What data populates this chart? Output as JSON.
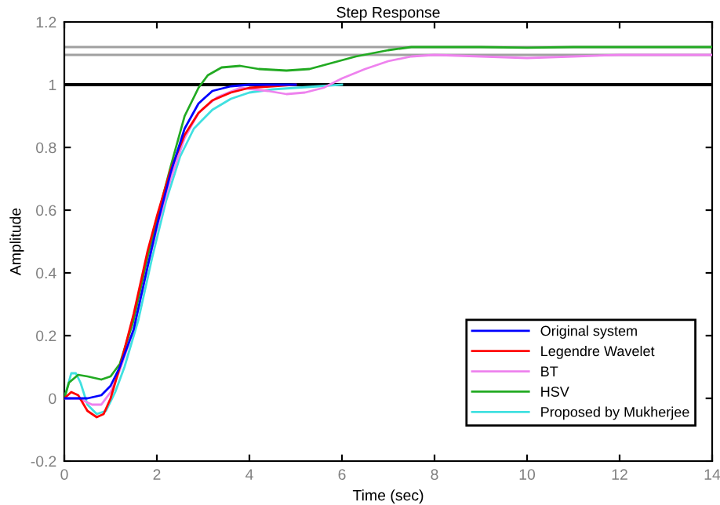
{
  "chart_data": {
    "type": "line",
    "title": "Step Response",
    "xlabel": "Time (sec)",
    "ylabel": "Amplitude",
    "xlim": [
      0,
      14
    ],
    "ylim": [
      -0.2,
      1.2
    ],
    "xticks": [
      0,
      2,
      4,
      6,
      8,
      10,
      12,
      14
    ],
    "yticks": [
      -0.2,
      0,
      0.2,
      0.4,
      0.6,
      0.8,
      1,
      1.2
    ],
    "grid": false,
    "legend": "bottom right",
    "marker": "none",
    "line_style": "solid",
    "ref_lines": [
      {
        "axis": "y",
        "value": 1,
        "color": "#000000"
      },
      {
        "axis": "y",
        "value": 1.12,
        "color": "#a0a0a0"
      },
      {
        "axis": "y",
        "value": 1.095,
        "color": "#a0a0a0"
      }
    ],
    "series": [
      {
        "name": "Original system",
        "color": "#0000ff",
        "x": [
          0,
          0.5,
          0.8,
          1.0,
          1.2,
          1.5,
          1.8,
          2.0,
          2.3,
          2.6,
          2.9,
          3.2,
          3.6,
          4,
          5
        ],
        "values": [
          0,
          0,
          0.01,
          0.04,
          0.1,
          0.22,
          0.42,
          0.55,
          0.72,
          0.86,
          0.94,
          0.98,
          0.995,
          1.0,
          1.0
        ]
      },
      {
        "name": "Legendre Wavelet",
        "color": "#ff0000",
        "x": [
          0,
          0.15,
          0.3,
          0.5,
          0.7,
          0.85,
          1.0,
          1.2,
          1.5,
          1.8,
          2.0,
          2.3,
          2.6,
          2.9,
          3.2,
          3.6,
          4,
          4.5,
          5
        ],
        "values": [
          0,
          0.02,
          0.01,
          -0.04,
          -0.06,
          -0.05,
          0.0,
          0.1,
          0.27,
          0.47,
          0.58,
          0.73,
          0.84,
          0.91,
          0.95,
          0.975,
          0.99,
          0.995,
          1.0
        ]
      },
      {
        "name": "BT",
        "color": "#ee82ee",
        "x": [
          0,
          0.3,
          0.6,
          0.8,
          1.0,
          1.2,
          1.5,
          1.8,
          2.0,
          2.3,
          2.6,
          2.9,
          3.3,
          3.8,
          4.4,
          4.8,
          5.2,
          5.6,
          6,
          6.5,
          7,
          7.5,
          8,
          9,
          10,
          11,
          12,
          14
        ],
        "values": [
          0,
          0,
          -0.02,
          -0.02,
          0.02,
          0.09,
          0.22,
          0.42,
          0.54,
          0.7,
          0.83,
          0.91,
          0.96,
          0.99,
          0.98,
          0.97,
          0.975,
          0.99,
          1.02,
          1.05,
          1.075,
          1.09,
          1.095,
          1.09,
          1.085,
          1.09,
          1.095,
          1.095
        ]
      },
      {
        "name": "HSV",
        "color": "#22aa22",
        "x": [
          0,
          0.1,
          0.3,
          0.5,
          0.8,
          1.0,
          1.2,
          1.5,
          1.8,
          2.0,
          2.3,
          2.6,
          2.9,
          3.1,
          3.4,
          3.8,
          4.2,
          4.8,
          5.3,
          5.8,
          6.3,
          7,
          7.5,
          9,
          10,
          11,
          14
        ],
        "values": [
          0,
          0.05,
          0.075,
          0.07,
          0.06,
          0.07,
          0.11,
          0.25,
          0.45,
          0.57,
          0.74,
          0.9,
          0.99,
          1.03,
          1.055,
          1.06,
          1.05,
          1.045,
          1.05,
          1.07,
          1.09,
          1.11,
          1.12,
          1.12,
          1.118,
          1.12,
          1.12
        ]
      },
      {
        "name": "Proposed by Mukherjee",
        "color": "#40e0e0",
        "x": [
          0,
          0.15,
          0.25,
          0.35,
          0.5,
          0.7,
          0.9,
          1.1,
          1.3,
          1.6,
          1.9,
          2.2,
          2.5,
          2.8,
          3.2,
          3.6,
          4.0,
          4.5,
          5,
          5.5,
          6
        ],
        "values": [
          0,
          0.08,
          0.08,
          0.05,
          -0.02,
          -0.05,
          -0.04,
          0.02,
          0.1,
          0.25,
          0.45,
          0.63,
          0.77,
          0.86,
          0.92,
          0.955,
          0.975,
          0.985,
          0.99,
          0.995,
          1.0
        ]
      }
    ]
  }
}
